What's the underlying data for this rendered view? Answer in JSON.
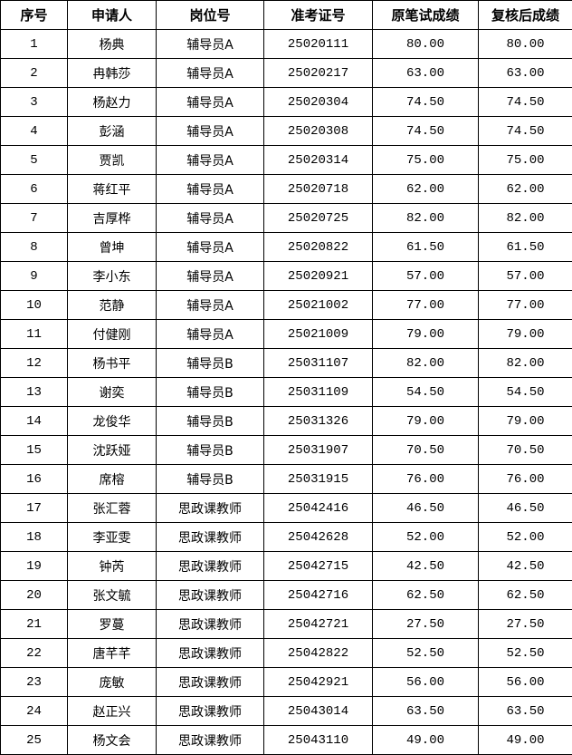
{
  "headers": [
    "序号",
    "申请人",
    "岗位号",
    "准考证号",
    "原笔试成绩",
    "复核后成绩"
  ],
  "rows": [
    [
      "1",
      "杨典",
      "辅导员A",
      "25020111",
      "80.00",
      "80.00"
    ],
    [
      "2",
      "冉韩莎",
      "辅导员A",
      "25020217",
      "63.00",
      "63.00"
    ],
    [
      "3",
      "杨赵力",
      "辅导员A",
      "25020304",
      "74.50",
      "74.50"
    ],
    [
      "4",
      "彭涵",
      "辅导员A",
      "25020308",
      "74.50",
      "74.50"
    ],
    [
      "5",
      "贾凯",
      "辅导员A",
      "25020314",
      "75.00",
      "75.00"
    ],
    [
      "6",
      "蒋红平",
      "辅导员A",
      "25020718",
      "62.00",
      "62.00"
    ],
    [
      "7",
      "吉厚桦",
      "辅导员A",
      "25020725",
      "82.00",
      "82.00"
    ],
    [
      "8",
      "曾坤",
      "辅导员A",
      "25020822",
      "61.50",
      "61.50"
    ],
    [
      "9",
      "李小东",
      "辅导员A",
      "25020921",
      "57.00",
      "57.00"
    ],
    [
      "10",
      "范静",
      "辅导员A",
      "25021002",
      "77.00",
      "77.00"
    ],
    [
      "11",
      "付健刚",
      "辅导员A",
      "25021009",
      "79.00",
      "79.00"
    ],
    [
      "12",
      "杨书平",
      "辅导员B",
      "25031107",
      "82.00",
      "82.00"
    ],
    [
      "13",
      "谢奕",
      "辅导员B",
      "25031109",
      "54.50",
      "54.50"
    ],
    [
      "14",
      "龙俊华",
      "辅导员B",
      "25031326",
      "79.00",
      "79.00"
    ],
    [
      "15",
      "沈跃娅",
      "辅导员B",
      "25031907",
      "70.50",
      "70.50"
    ],
    [
      "16",
      "席榕",
      "辅导员B",
      "25031915",
      "76.00",
      "76.00"
    ],
    [
      "17",
      "张汇蓉",
      "思政课教师",
      "25042416",
      "46.50",
      "46.50"
    ],
    [
      "18",
      "李亚雯",
      "思政课教师",
      "25042628",
      "52.00",
      "52.00"
    ],
    [
      "19",
      "钟芮",
      "思政课教师",
      "25042715",
      "42.50",
      "42.50"
    ],
    [
      "20",
      "张文毓",
      "思政课教师",
      "25042716",
      "62.50",
      "62.50"
    ],
    [
      "21",
      "罗蔓",
      "思政课教师",
      "25042721",
      "27.50",
      "27.50"
    ],
    [
      "22",
      "唐芊芊",
      "思政课教师",
      "25042822",
      "52.50",
      "52.50"
    ],
    [
      "23",
      "庞敏",
      "思政课教师",
      "25042921",
      "56.00",
      "56.00"
    ],
    [
      "24",
      "赵正兴",
      "思政课教师",
      "25043014",
      "63.50",
      "63.50"
    ],
    [
      "25",
      "杨文会",
      "思政课教师",
      "25043110",
      "49.00",
      "49.00"
    ]
  ]
}
